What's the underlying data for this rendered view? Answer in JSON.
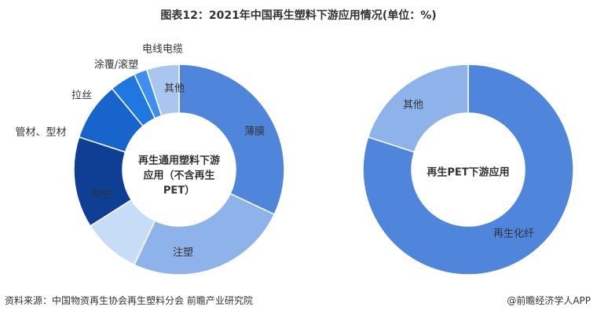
{
  "title": "图表12：2021年中国再生塑料下游应用情况(单位：%)",
  "footer": {
    "source": "资料来源：中国物资再生协会再生塑料分会 前瞻产业研究院",
    "credit": "@前瞻经济学人APP"
  },
  "colors": {
    "background": "#ffffff",
    "label_dark": "#333333",
    "label_light": "#ffffff",
    "donut_hole": "#ffffff"
  },
  "chart_data": [
    {
      "type": "pie",
      "variant": "donut",
      "center_label": "再生通用塑料下游应用（不含再生PET）",
      "center_label_lines": [
        "再生通用塑料下游",
        "应用（不含再生",
        "PET）"
      ],
      "categories": [
        "薄膜",
        "注塑",
        "中空",
        "管材、型材",
        "拉丝",
        "涂覆/滚塑",
        "电线电缆",
        "其他"
      ],
      "values": [
        32,
        25,
        9,
        14,
        9,
        4,
        2,
        5
      ],
      "colors": [
        "#4f86dc",
        "#8db3ea",
        "#c7dcf7",
        "#0e3f95",
        "#1764cc",
        "#1f77e0",
        "#3d8ef0",
        "#a9c6f0"
      ],
      "label_colors": [
        "#333333",
        "#333333",
        "#333333",
        "#333333",
        "#333333",
        "#333333",
        "#333333",
        "#333333"
      ],
      "start_angle_deg": 0,
      "direction": "clockwise",
      "legend": "none"
    },
    {
      "type": "pie",
      "variant": "donut",
      "center_label": "再生PET下游应用",
      "center_label_lines": [
        "再生PET下游应用"
      ],
      "categories": [
        "再生化纤",
        "其他"
      ],
      "values": [
        80,
        20
      ],
      "colors": [
        "#4f86dc",
        "#8db3ea"
      ],
      "label_colors": [
        "#333333",
        "#333333"
      ],
      "start_angle_deg": 0,
      "direction": "clockwise",
      "legend": "none"
    }
  ]
}
